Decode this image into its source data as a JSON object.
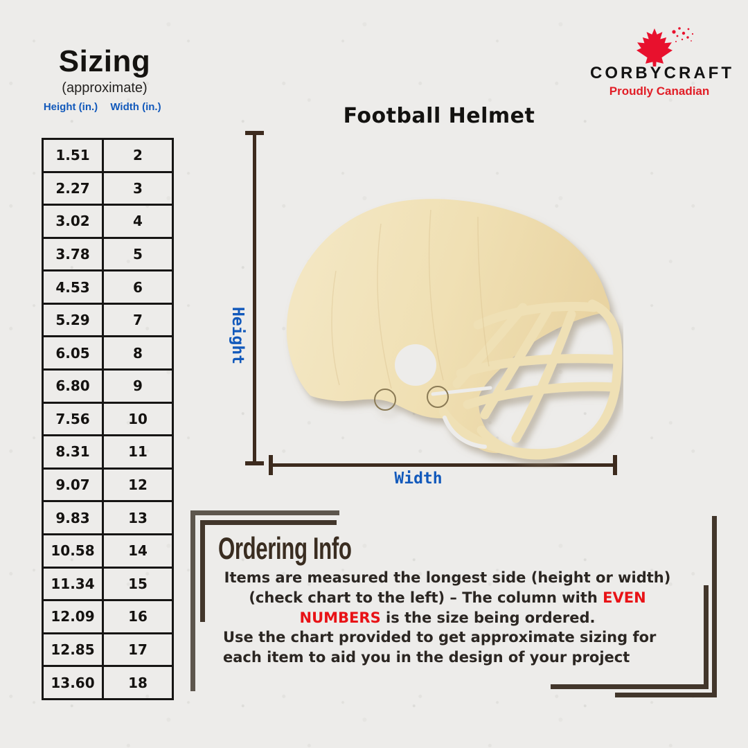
{
  "sizing": {
    "title": "Sizing",
    "subtitle": "(approximate)",
    "col_height": "Height (in.)",
    "col_width": "Width (in.)",
    "rows": [
      {
        "h": "1.51",
        "w": "2"
      },
      {
        "h": "2.27",
        "w": "3"
      },
      {
        "h": "3.02",
        "w": "4"
      },
      {
        "h": "3.78",
        "w": "5"
      },
      {
        "h": "4.53",
        "w": "6"
      },
      {
        "h": "5.29",
        "w": "7"
      },
      {
        "h": "6.05",
        "w": "8"
      },
      {
        "h": "6.80",
        "w": "9"
      },
      {
        "h": "7.56",
        "w": "10"
      },
      {
        "h": "8.31",
        "w": "11"
      },
      {
        "h": "9.07",
        "w": "12"
      },
      {
        "h": "9.83",
        "w": "13"
      },
      {
        "h": "10.58",
        "w": "14"
      },
      {
        "h": "11.34",
        "w": "15"
      },
      {
        "h": "12.09",
        "w": "16"
      },
      {
        "h": "12.85",
        "w": "17"
      },
      {
        "h": "13.60",
        "w": "18"
      }
    ]
  },
  "brand": {
    "name": "CORBYCRAFT",
    "tagline": "Proudly Canadian",
    "leaf_icon": "maple-leaf-icon"
  },
  "product": {
    "title": "Football Helmet",
    "height_label": "Height",
    "width_label": "Width",
    "image": "wooden-football-helmet-cutout"
  },
  "ordering": {
    "title": "Ordering Info",
    "p1_before": "Items are measured the longest side (height or width) (check chart to the left) – The column with ",
    "p1_highlight": "EVEN NUMBERS",
    "p1_after": " is the size being ordered.",
    "p2": "Use the chart provided to get approximate sizing for each item to aid you in the design of your project"
  },
  "colors": {
    "background": "#edecea",
    "accent_blue": "#1259bb",
    "brand_red": "#e8112d",
    "highlight_red": "#e81216",
    "dimension_line_brown": "#3d2b1e",
    "bracket_dark": "#42362b",
    "bracket_gray": "#5d564d",
    "wood": "#efe0b4",
    "text_dark": "#2b2622"
  }
}
